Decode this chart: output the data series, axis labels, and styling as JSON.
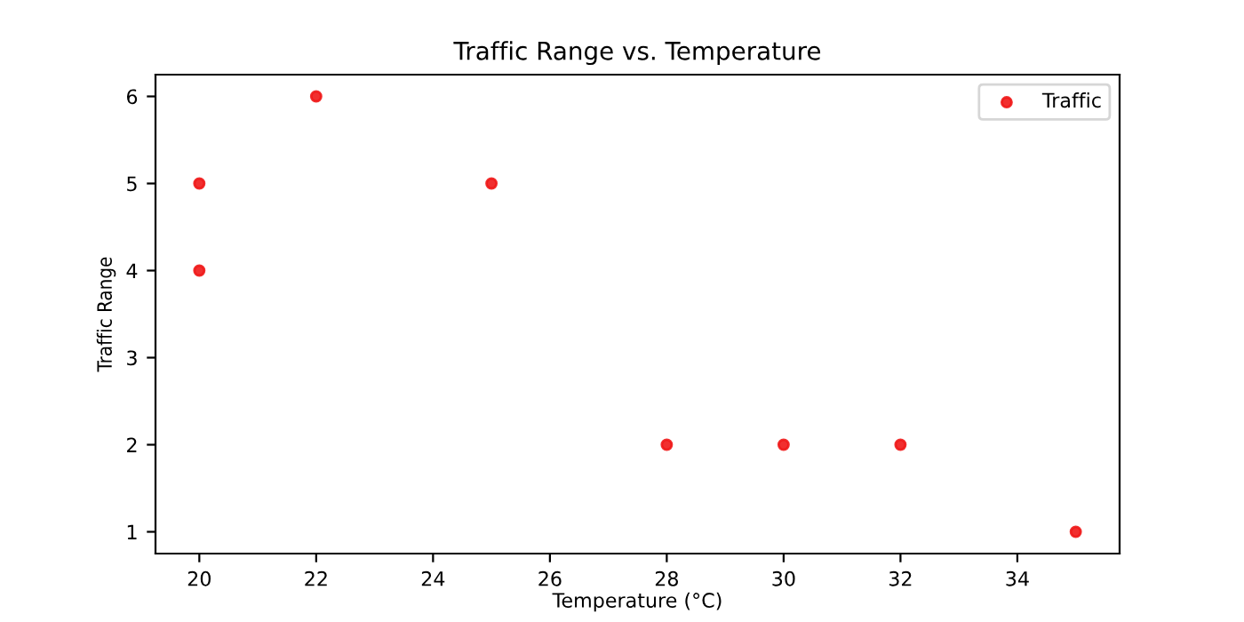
{
  "chart_data": {
    "type": "scatter",
    "title": "Traffic Range vs. Temperature",
    "xlabel": "Temperature (°C)",
    "ylabel": "Traffic Range",
    "x": [
      20,
      20,
      22,
      25,
      28,
      30,
      32,
      35
    ],
    "series": [
      {
        "name": "Traffic",
        "color": "#f01818",
        "values": [
          5,
          4,
          6,
          5,
          2,
          2,
          2,
          1
        ]
      }
    ],
    "xlim": [
      19.25,
      35.75
    ],
    "ylim": [
      0.75,
      6.25
    ],
    "xticks": [
      20,
      22,
      24,
      26,
      28,
      30,
      32,
      34
    ],
    "yticks": [
      1,
      2,
      3,
      4,
      5,
      6
    ],
    "legend": "top right",
    "marker": "circle",
    "grid": false
  }
}
